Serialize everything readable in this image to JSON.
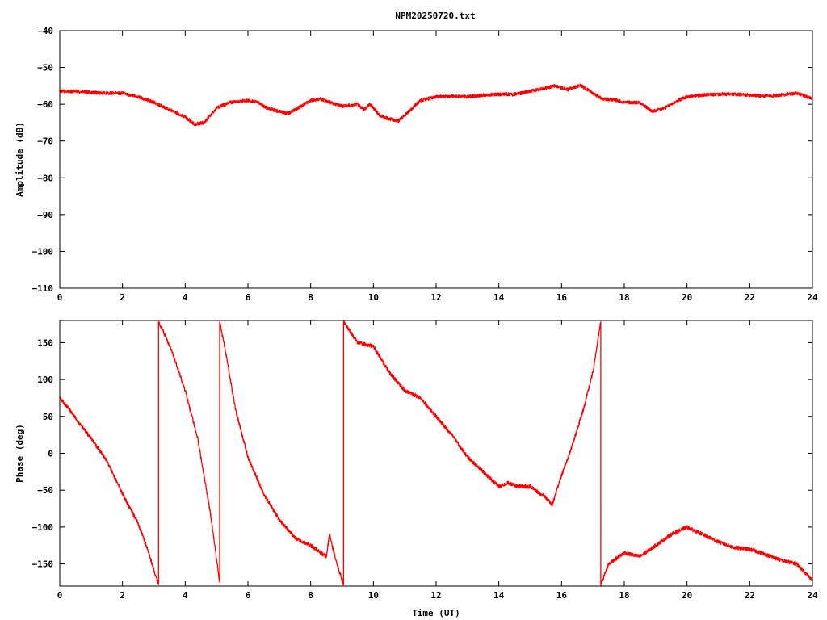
{
  "title": "NPM20250720.txt",
  "colors": {
    "trace": "#ff0000",
    "axis": "#000000",
    "background": "#ffffff"
  },
  "chart_data": [
    {
      "type": "line",
      "title": "NPM20250720.txt",
      "xlabel": "",
      "ylabel": "Amplitude (dB)",
      "xlim": [
        0,
        24
      ],
      "ylim": [
        -110,
        -40
      ],
      "xticks": [
        0,
        2,
        4,
        6,
        8,
        10,
        12,
        14,
        16,
        18,
        20,
        22,
        24
      ],
      "yticks": [
        -40,
        -50,
        -60,
        -70,
        -80,
        -90,
        -100,
        -110
      ],
      "grid": false,
      "series": [
        {
          "noise": 0.45,
          "x": [
            0,
            0.5,
            1,
            1.5,
            2,
            2.5,
            3,
            3.5,
            4,
            4.3,
            4.6,
            5,
            5.4,
            6,
            6.3,
            6.6,
            7,
            7.3,
            7.6,
            8,
            8.3,
            8.6,
            9,
            9.5,
            9.7,
            9.9,
            10.2,
            10.5,
            10.8,
            11,
            11.5,
            12,
            12.5,
            13,
            13.5,
            14,
            14.5,
            15,
            15.5,
            15.8,
            16.2,
            16.6,
            17,
            17.3,
            17.7,
            18,
            18.5,
            18.9,
            19.3,
            19.7,
            20,
            20.5,
            21,
            21.5,
            22,
            22.5,
            23,
            23.5,
            24
          ],
          "y": [
            -56.5,
            -56.5,
            -56.8,
            -57,
            -57,
            -58,
            -59.5,
            -61.5,
            -63.5,
            -65.5,
            -65,
            -61,
            -59.5,
            -59,
            -59.5,
            -61,
            -62,
            -62.5,
            -61,
            -59,
            -58.5,
            -59.5,
            -60.5,
            -60,
            -61.5,
            -60,
            -63,
            -64,
            -64.5,
            -63,
            -59,
            -58,
            -57.8,
            -58,
            -57.5,
            -57.3,
            -57.3,
            -56.5,
            -55.5,
            -55,
            -56,
            -54.8,
            -57,
            -58.5,
            -58.8,
            -59.5,
            -59.5,
            -62,
            -61,
            -59,
            -58,
            -57.5,
            -57.3,
            -57.3,
            -57.5,
            -57.8,
            -57.5,
            -57,
            -58.5
          ]
        }
      ]
    },
    {
      "type": "line",
      "title": "",
      "xlabel": "Time (UT)",
      "ylabel": "Phase (deg)",
      "xlim": [
        0,
        24
      ],
      "ylim": [
        -180,
        180
      ],
      "xticks": [
        0,
        2,
        4,
        6,
        8,
        10,
        12,
        14,
        16,
        18,
        20,
        22,
        24
      ],
      "yticks": [
        150,
        100,
        50,
        0,
        -50,
        -100,
        -150
      ],
      "grid": false,
      "series": [
        {
          "noise": 2.5,
          "x": [
            0,
            0.3,
            0.6,
            1,
            1.5,
            2,
            2.5,
            2.8,
            3.1,
            3.15,
            3.15,
            3.3,
            3.6,
            4,
            4.4,
            4.8,
            5.1,
            5.1,
            5.3,
            5.6,
            6,
            6.5,
            7,
            7.5,
            8,
            8.5,
            8.6,
            8.8,
            9.05,
            9.05,
            9.5,
            10,
            10.5,
            11,
            11.5,
            12,
            12.5,
            13,
            13.5,
            14,
            14.3,
            14.6,
            15,
            15.5,
            15.7,
            16,
            16.3,
            16.7,
            17,
            17.25,
            17.25,
            17.5,
            18,
            18.5,
            19,
            19.5,
            20,
            20.5,
            21,
            21.5,
            22,
            22.5,
            23,
            23.5,
            24
          ],
          "y": [
            75,
            60,
            42,
            20,
            -10,
            -55,
            -95,
            -130,
            -172,
            -178,
            178,
            165,
            135,
            85,
            20,
            -80,
            -175,
            178,
            135,
            60,
            -5,
            -55,
            -90,
            -115,
            -125,
            -140,
            -110,
            -145,
            -178,
            178,
            150,
            145,
            110,
            85,
            75,
            50,
            25,
            -5,
            -25,
            -45,
            -40,
            -45,
            -45,
            -60,
            -70,
            -30,
            5,
            60,
            110,
            178,
            -178,
            -150,
            -135,
            -140,
            -125,
            -110,
            -100,
            -110,
            -120,
            -128,
            -130,
            -137,
            -145,
            -150,
            -172
          ]
        }
      ]
    }
  ]
}
